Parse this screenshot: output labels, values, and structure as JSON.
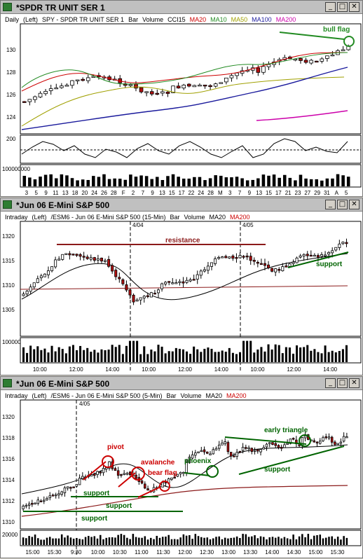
{
  "colors": {
    "ma20": "#cc0000",
    "ma10": "#228b22",
    "ma50": "#a0a000",
    "ma100": "#1a1a9c",
    "ma200": "#cc00aa",
    "cci": "#000000",
    "annot_red": "#cc0000",
    "annot_green": "#228b22",
    "candle_up": "#ffffff",
    "candle_down": "#b01010"
  },
  "window_buttons": {
    "minimize": "_",
    "maximize": "□",
    "close": "✕"
  },
  "windows": [
    {
      "title": "*SPDR TR UNIT SER 1",
      "info": {
        "timeframe": "Daily",
        "axis": "(Left)",
        "symbol": "SPY - SPDR TR UNIT SER 1",
        "type": "Bar",
        "vol": "Volume",
        "ind1": "CCI15",
        "ind2": "MA20",
        "ind3": "MA10",
        "ind4": "MA50",
        "ind5": "MA100",
        "ind6": "MA200"
      },
      "price_ticks": [
        "130",
        "128",
        "126",
        "124"
      ],
      "cci_tick": "200",
      "vol_tick": "100000000",
      "x_ticks": [
        "3",
        "5",
        "9",
        "11",
        "13",
        "18",
        "20",
        "24",
        "26",
        "28",
        "F",
        "2",
        "7",
        "9",
        "13",
        "15",
        "17",
        "22",
        "24",
        "28",
        "M",
        "3",
        "7",
        "9",
        "13",
        "15",
        "17",
        "21",
        "23",
        "27",
        "29",
        "31",
        "A",
        "5"
      ],
      "annotations": {
        "bull_flag": "bull flag"
      }
    },
    {
      "title": "*Jun 06  E-Mini S&P 500",
      "info": {
        "timeframe": "Intraday",
        "axis": "(Left)",
        "symbol": "/ESM6 - Jun 06 E-Mini S&P 500 (15-Min)",
        "type": "Bar",
        "vol": "Volume",
        "ind1": "MA20",
        "ind2": "MA200"
      },
      "price_ticks": [
        "1320",
        "1315",
        "1310",
        "1305"
      ],
      "vol_tick": "100000",
      "date_markers": [
        "4/04",
        "4/05"
      ],
      "x_ticks": [
        "10:00",
        "12:00",
        "14:00",
        "10:00",
        "12:00",
        "14:00",
        "10:00",
        "12:00",
        "14:00"
      ],
      "annotations": {
        "resistance": "resistance",
        "support": "support"
      }
    },
    {
      "title": "*Jun 06  E-Mini S&P 500",
      "info": {
        "timeframe": "Intraday",
        "axis": "(Left)",
        "symbol": "/ESM6 - Jun 06 E-Mini S&P 500 (5-Min)",
        "type": "Bar",
        "vol": "Volume",
        "ind1": "MA20",
        "ind2": "MA200"
      },
      "price_ticks": [
        "1320",
        "1318",
        "1316",
        "1314",
        "1312",
        "1310"
      ],
      "vol_tick": "20000",
      "date_markers": [
        "4/05"
      ],
      "x_ticks": [
        "15:00",
        "15:30",
        "9:30",
        "10:00",
        "10:30",
        "11:00",
        "11:30",
        "12:00",
        "12:30",
        "13:00",
        "13:30",
        "14:00",
        "14:30",
        "15:00",
        "15:30"
      ],
      "annotations": {
        "pivot": "pivot",
        "avalanche": "avalanche",
        "bear_flag": "bear flag",
        "phoenix": "phoenix",
        "early_triangle": "early triangle",
        "support1": "support",
        "support2": "support",
        "support3": "support",
        "support4": "support"
      }
    }
  ]
}
